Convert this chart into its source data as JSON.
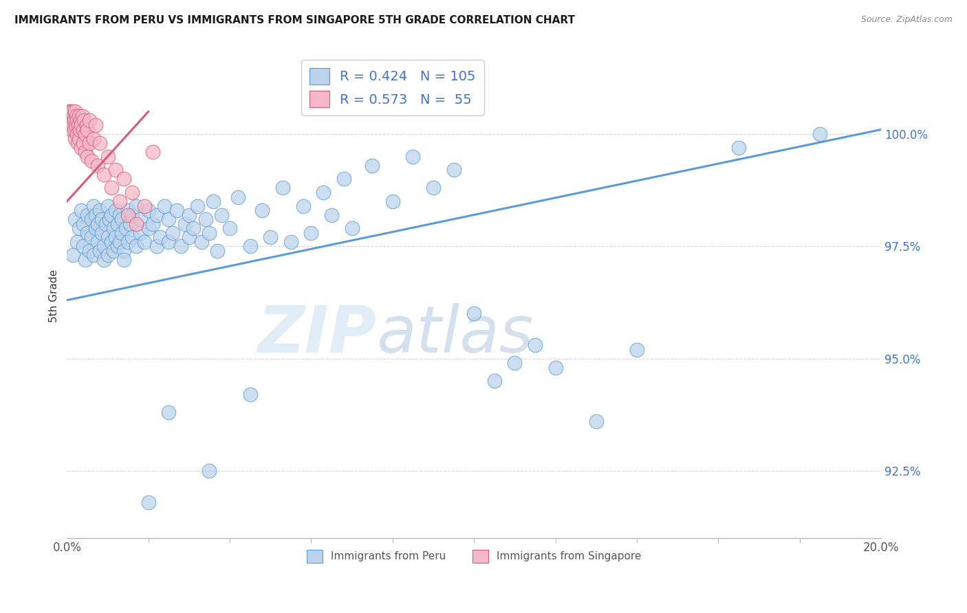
{
  "title": "IMMIGRANTS FROM PERU VS IMMIGRANTS FROM SINGAPORE 5TH GRADE CORRELATION CHART",
  "source": "Source: ZipAtlas.com",
  "ylabel": "5th Grade",
  "xlim": [
    0.0,
    20.0
  ],
  "ylim": [
    91.0,
    101.8
  ],
  "yticks": [
    92.5,
    95.0,
    97.5,
    100.0
  ],
  "ytick_labels": [
    "92.5%",
    "95.0%",
    "97.5%",
    "100.0%"
  ],
  "blue_r": 0.424,
  "blue_n": 105,
  "pink_r": 0.573,
  "pink_n": 55,
  "blue_color": "#bbd4ec",
  "blue_edge_color": "#5b9bd5",
  "pink_color": "#f4b8c8",
  "pink_edge_color": "#d45b7a",
  "legend_label_blue": "Immigrants from Peru",
  "legend_label_pink": "Immigrants from Singapore",
  "watermark_zip": "ZIP",
  "watermark_atlas": "atlas",
  "blue_trend_x0": 0.0,
  "blue_trend_y0": 96.3,
  "blue_trend_x1": 20.0,
  "blue_trend_y1": 100.1,
  "pink_trend_x0": 0.0,
  "pink_trend_y0": 98.5,
  "pink_trend_x1": 2.0,
  "pink_trend_y1": 100.5,
  "blue_points": [
    [
      0.15,
      97.3
    ],
    [
      0.2,
      98.1
    ],
    [
      0.25,
      97.6
    ],
    [
      0.3,
      97.9
    ],
    [
      0.35,
      98.3
    ],
    [
      0.4,
      97.5
    ],
    [
      0.4,
      98.0
    ],
    [
      0.45,
      97.2
    ],
    [
      0.5,
      97.8
    ],
    [
      0.5,
      98.2
    ],
    [
      0.55,
      97.4
    ],
    [
      0.6,
      98.1
    ],
    [
      0.6,
      97.7
    ],
    [
      0.65,
      98.4
    ],
    [
      0.65,
      97.3
    ],
    [
      0.7,
      97.9
    ],
    [
      0.7,
      98.2
    ],
    [
      0.75,
      97.6
    ],
    [
      0.75,
      98.0
    ],
    [
      0.8,
      97.4
    ],
    [
      0.8,
      98.3
    ],
    [
      0.85,
      97.8
    ],
    [
      0.85,
      98.1
    ],
    [
      0.9,
      97.5
    ],
    [
      0.9,
      97.2
    ],
    [
      0.95,
      98.0
    ],
    [
      1.0,
      97.7
    ],
    [
      1.0,
      98.4
    ],
    [
      1.0,
      97.3
    ],
    [
      1.05,
      98.1
    ],
    [
      1.1,
      97.6
    ],
    [
      1.1,
      98.2
    ],
    [
      1.15,
      97.4
    ],
    [
      1.15,
      97.9
    ],
    [
      1.2,
      98.3
    ],
    [
      1.2,
      97.7
    ],
    [
      1.25,
      97.5
    ],
    [
      1.25,
      98.0
    ],
    [
      1.3,
      98.2
    ],
    [
      1.3,
      97.6
    ],
    [
      1.35,
      97.8
    ],
    [
      1.35,
      98.1
    ],
    [
      1.4,
      97.4
    ],
    [
      1.4,
      97.2
    ],
    [
      1.45,
      97.9
    ],
    [
      1.5,
      98.3
    ],
    [
      1.5,
      97.6
    ],
    [
      1.55,
      98.0
    ],
    [
      1.6,
      97.7
    ],
    [
      1.6,
      98.2
    ],
    [
      1.7,
      97.5
    ],
    [
      1.7,
      98.4
    ],
    [
      1.8,
      97.8
    ],
    [
      1.8,
      98.1
    ],
    [
      1.9,
      97.6
    ],
    [
      2.0,
      98.3
    ],
    [
      2.0,
      97.9
    ],
    [
      2.1,
      98.0
    ],
    [
      2.2,
      97.5
    ],
    [
      2.2,
      98.2
    ],
    [
      2.3,
      97.7
    ],
    [
      2.4,
      98.4
    ],
    [
      2.5,
      97.6
    ],
    [
      2.5,
      98.1
    ],
    [
      2.6,
      97.8
    ],
    [
      2.7,
      98.3
    ],
    [
      2.8,
      97.5
    ],
    [
      2.9,
      98.0
    ],
    [
      3.0,
      97.7
    ],
    [
      3.0,
      98.2
    ],
    [
      3.1,
      97.9
    ],
    [
      3.2,
      98.4
    ],
    [
      3.3,
      97.6
    ],
    [
      3.4,
      98.1
    ],
    [
      3.5,
      97.8
    ],
    [
      3.6,
      98.5
    ],
    [
      3.7,
      97.4
    ],
    [
      3.8,
      98.2
    ],
    [
      4.0,
      97.9
    ],
    [
      4.2,
      98.6
    ],
    [
      4.5,
      97.5
    ],
    [
      4.8,
      98.3
    ],
    [
      5.0,
      97.7
    ],
    [
      5.3,
      98.8
    ],
    [
      5.5,
      97.6
    ],
    [
      5.8,
      98.4
    ],
    [
      6.0,
      97.8
    ],
    [
      6.3,
      98.7
    ],
    [
      6.5,
      98.2
    ],
    [
      6.8,
      99.0
    ],
    [
      7.0,
      97.9
    ],
    [
      7.5,
      99.3
    ],
    [
      8.0,
      98.5
    ],
    [
      8.5,
      99.5
    ],
    [
      9.0,
      98.8
    ],
    [
      9.5,
      99.2
    ],
    [
      10.0,
      96.0
    ],
    [
      10.5,
      94.5
    ],
    [
      11.0,
      94.9
    ],
    [
      11.5,
      95.3
    ],
    [
      12.0,
      94.8
    ],
    [
      13.0,
      93.6
    ],
    [
      14.0,
      95.2
    ],
    [
      16.5,
      99.7
    ],
    [
      18.5,
      100.0
    ],
    [
      4.5,
      94.2
    ],
    [
      2.5,
      93.8
    ],
    [
      3.5,
      92.5
    ],
    [
      2.0,
      91.8
    ]
  ],
  "pink_points": [
    [
      0.05,
      100.4
    ],
    [
      0.07,
      100.5
    ],
    [
      0.08,
      100.3
    ],
    [
      0.09,
      100.4
    ],
    [
      0.1,
      100.2
    ],
    [
      0.1,
      100.5
    ],
    [
      0.12,
      100.1
    ],
    [
      0.12,
      100.4
    ],
    [
      0.13,
      100.3
    ],
    [
      0.15,
      100.5
    ],
    [
      0.15,
      100.2
    ],
    [
      0.17,
      100.4
    ],
    [
      0.18,
      100.1
    ],
    [
      0.18,
      100.3
    ],
    [
      0.2,
      100.5
    ],
    [
      0.2,
      99.9
    ],
    [
      0.22,
      100.2
    ],
    [
      0.23,
      100.4
    ],
    [
      0.25,
      100.0
    ],
    [
      0.25,
      100.3
    ],
    [
      0.27,
      99.8
    ],
    [
      0.28,
      100.2
    ],
    [
      0.3,
      100.4
    ],
    [
      0.3,
      99.9
    ],
    [
      0.32,
      100.1
    ],
    [
      0.33,
      100.3
    ],
    [
      0.35,
      99.7
    ],
    [
      0.35,
      100.2
    ],
    [
      0.38,
      100.4
    ],
    [
      0.4,
      99.8
    ],
    [
      0.4,
      100.1
    ],
    [
      0.42,
      100.3
    ],
    [
      0.45,
      99.6
    ],
    [
      0.45,
      100.0
    ],
    [
      0.48,
      100.2
    ],
    [
      0.5,
      99.5
    ],
    [
      0.5,
      100.1
    ],
    [
      0.55,
      99.8
    ],
    [
      0.55,
      100.3
    ],
    [
      0.6,
      99.4
    ],
    [
      0.65,
      99.9
    ],
    [
      0.7,
      100.2
    ],
    [
      0.75,
      99.3
    ],
    [
      0.8,
      99.8
    ],
    [
      0.9,
      99.1
    ],
    [
      1.0,
      99.5
    ],
    [
      1.1,
      98.8
    ],
    [
      1.2,
      99.2
    ],
    [
      1.3,
      98.5
    ],
    [
      1.4,
      99.0
    ],
    [
      1.5,
      98.2
    ],
    [
      1.6,
      98.7
    ],
    [
      1.7,
      98.0
    ],
    [
      1.9,
      98.4
    ],
    [
      2.1,
      99.6
    ]
  ]
}
